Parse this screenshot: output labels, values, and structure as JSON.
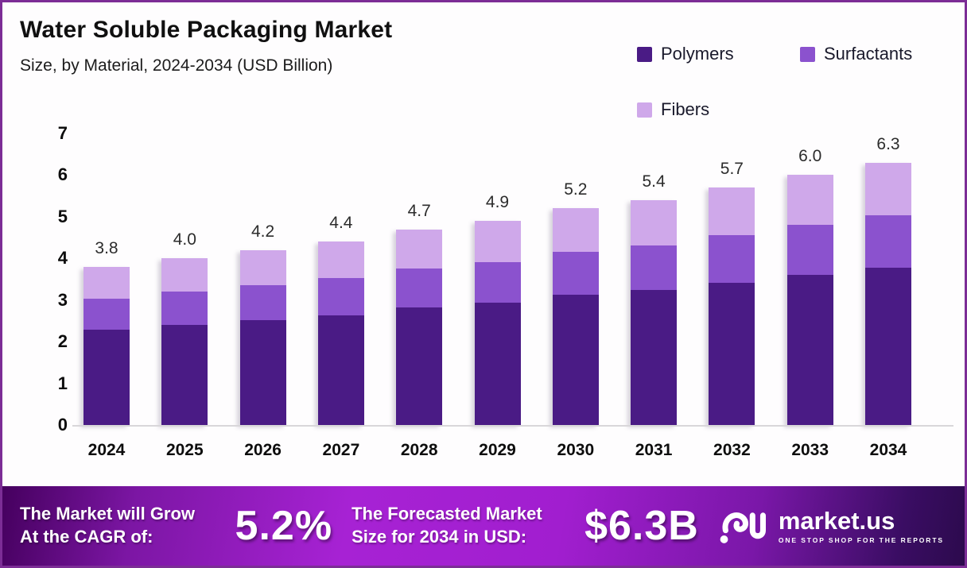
{
  "header": {
    "title": "Water Soluble Packaging Market",
    "subtitle": "Size, by Material, 2024-2034 (USD Billion)"
  },
  "legend": {
    "items": [
      {
        "label": "Polymers",
        "color": "#4a1b85"
      },
      {
        "label": "Surfactants",
        "color": "#8b52ce"
      },
      {
        "label": "Fibers",
        "color": "#cfa8ea"
      }
    ]
  },
  "chart_data": {
    "type": "bar",
    "stacked": true,
    "title": "Water Soluble Packaging Market Size, by Material, 2024-2034 (USD Billion)",
    "xlabel": "",
    "ylabel": "USD Billion",
    "ylim": [
      0,
      7
    ],
    "yticks": [
      0,
      1,
      2,
      3,
      4,
      5,
      6,
      7
    ],
    "grid": false,
    "legend_position": "top-right",
    "categories": [
      "2024",
      "2025",
      "2026",
      "2027",
      "2028",
      "2029",
      "2030",
      "2031",
      "2032",
      "2033",
      "2034"
    ],
    "totals": [
      3.8,
      4.0,
      4.2,
      4.4,
      4.7,
      4.9,
      5.2,
      5.4,
      5.7,
      6.0,
      6.3
    ],
    "totals_labels": [
      "3.8",
      "4.0",
      "4.2",
      "4.4",
      "4.7",
      "4.9",
      "5.2",
      "5.4",
      "5.7",
      "6.0",
      "6.3"
    ],
    "series": [
      {
        "name": "Polymers",
        "color": "#4a1b85",
        "values": [
          2.28,
          2.4,
          2.52,
          2.64,
          2.82,
          2.94,
          3.12,
          3.24,
          3.42,
          3.6,
          3.78
        ]
      },
      {
        "name": "Surfactants",
        "color": "#8b52ce",
        "values": [
          0.76,
          0.8,
          0.84,
          0.88,
          0.94,
          0.98,
          1.04,
          1.08,
          1.14,
          1.2,
          1.26
        ]
      },
      {
        "name": "Fibers",
        "color": "#cfa8ea",
        "values": [
          0.76,
          0.8,
          0.84,
          0.88,
          0.94,
          0.98,
          1.04,
          1.08,
          1.14,
          1.2,
          1.26
        ]
      }
    ]
  },
  "footer": {
    "cagr_line1": "The Market will Grow",
    "cagr_line2": "At the CAGR of:",
    "cagr_value": "5.2%",
    "forecast_line1": "The Forecasted Market",
    "forecast_line2": "Size for 2034 in USD:",
    "forecast_value": "$6.3B",
    "brand": "market.us",
    "tagline": "ONE STOP SHOP FOR THE REPORTS"
  },
  "colors": {
    "frame_border": "#7c2d96",
    "banner_gradient_start": "#45005e",
    "banner_gradient_mid": "#a722d4",
    "banner_gradient_end": "#2c0a4d",
    "axis_line": "#d9d7da"
  }
}
